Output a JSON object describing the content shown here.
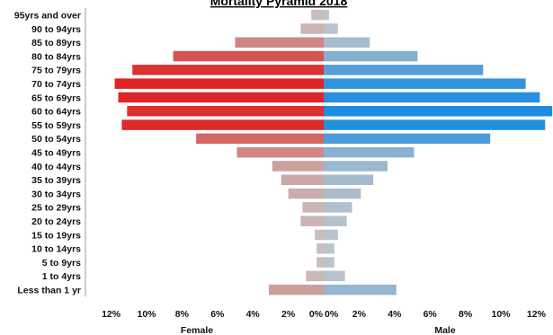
{
  "chart_data": {
    "type": "bar",
    "orientation": "horizontal-pyramid",
    "title": "Mortality Pyramid 2018",
    "categories": [
      "95yrs and over",
      "90 to 94yrs",
      "85 to 89yrs",
      "80 to 84yrs",
      "75 to 79yrs",
      "70 to 74yrs",
      "65 to 69yrs",
      "60 to 64yrs",
      "55 to 59yrs",
      "50 to 54yrs",
      "45 to 49yrs",
      "40 to 44yrs",
      "35 to 39yrs",
      "30 to 34yrs",
      "25 to 29yrs",
      "20 to 24yrs",
      "15 to 19yrs",
      "10 to 14yrs",
      "5 to 9yrs",
      "1 to 4yrs",
      "Less than 1 yr"
    ],
    "series": [
      {
        "name": "Female",
        "values": [
          0.7,
          1.3,
          5.0,
          8.5,
          10.8,
          11.8,
          11.6,
          11.1,
          11.4,
          7.2,
          4.9,
          2.9,
          2.4,
          2.0,
          1.2,
          1.3,
          0.5,
          0.4,
          0.4,
          1.0,
          3.1
        ],
        "color": "#e01414"
      },
      {
        "name": "Male",
        "values": [
          0.3,
          0.8,
          2.6,
          5.3,
          9.0,
          11.4,
          12.2,
          12.9,
          12.5,
          9.4,
          5.1,
          3.6,
          2.8,
          2.1,
          1.6,
          1.3,
          0.8,
          0.6,
          0.6,
          1.2,
          4.1
        ],
        "color": "#1e8ce0"
      }
    ],
    "xlim": [
      -13,
      13
    ],
    "xticks_left": [
      "12%",
      "10%",
      "8%",
      "6%",
      "4%",
      "2%",
      "0%"
    ],
    "xticks_right": [
      "0%",
      "2%",
      "4%",
      "6%",
      "8%",
      "10%",
      "12%"
    ],
    "xlabel_left": "Female",
    "xlabel_right": "Male",
    "grid": false,
    "legend": "none"
  }
}
